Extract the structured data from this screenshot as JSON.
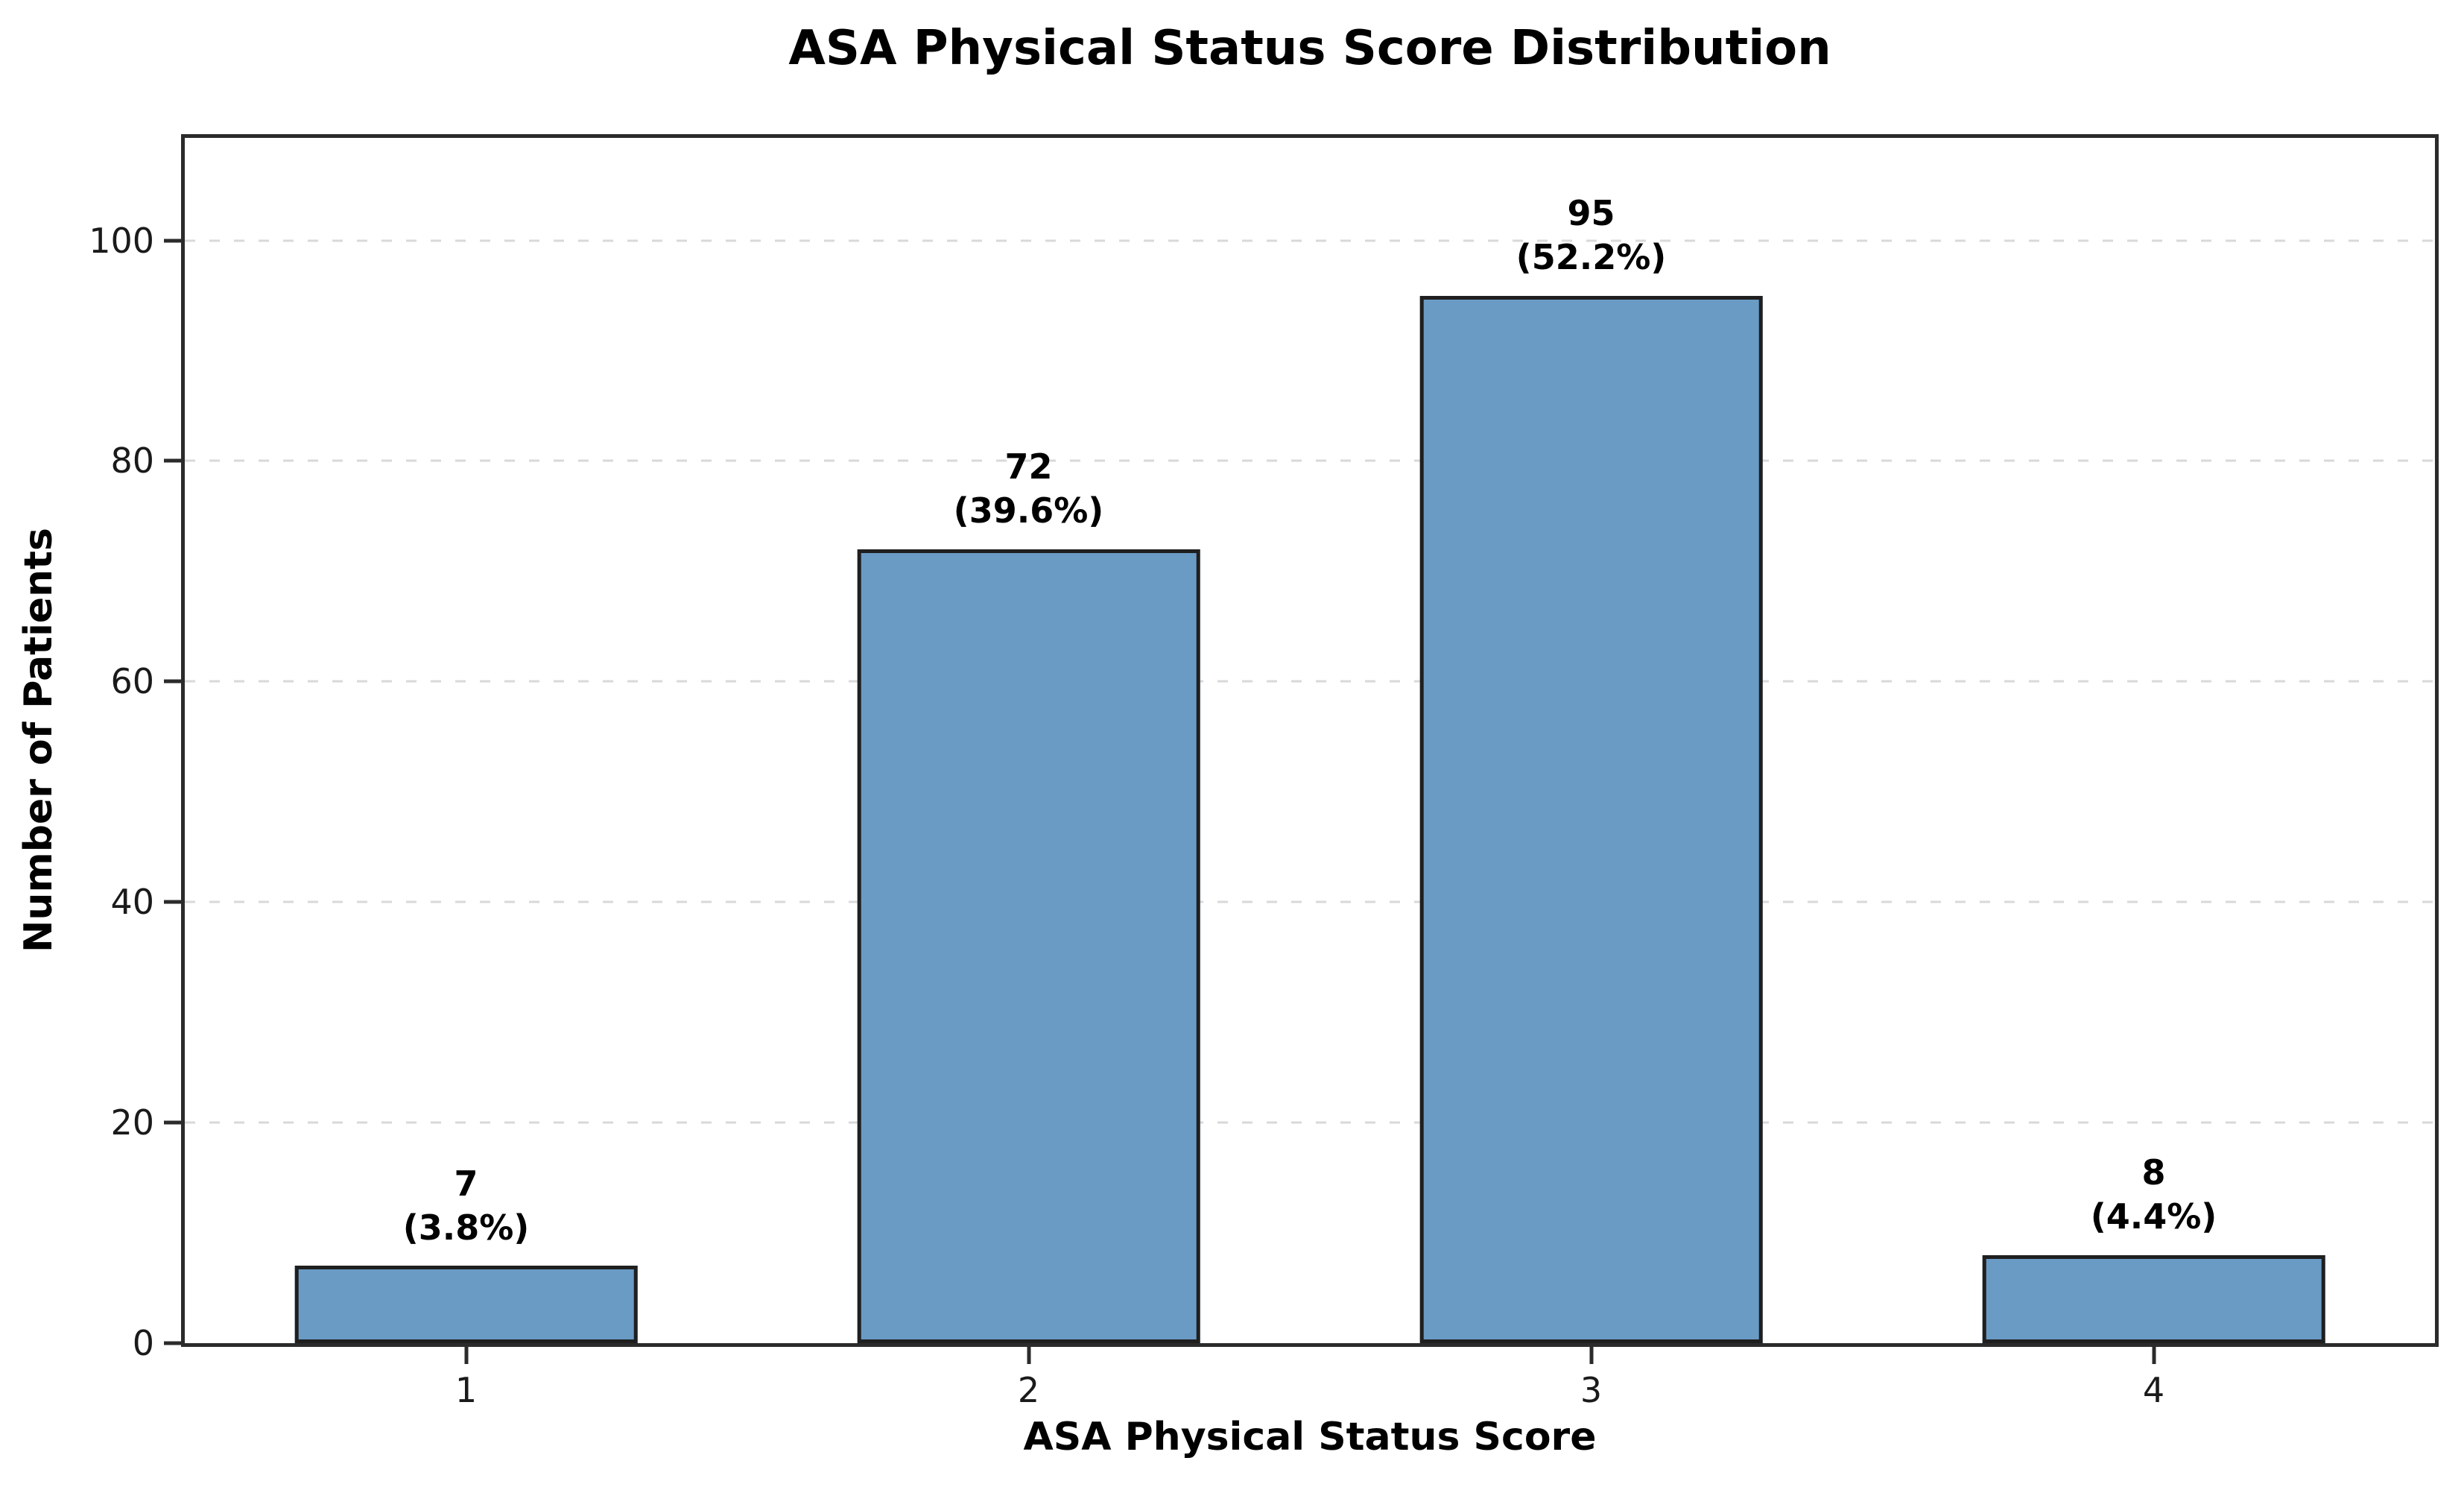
{
  "chart_data": {
    "type": "bar",
    "title": "ASA Physical Status Score Distribution",
    "xlabel": "ASA Physical Status Score",
    "ylabel": "Number of Patients",
    "categories": [
      "1",
      "2",
      "3",
      "4"
    ],
    "values": [
      7,
      72,
      95,
      8
    ],
    "percent_labels": [
      "(3.8%)",
      "(39.6%)",
      "(52.2%)",
      "(4.4%)"
    ],
    "yticks": [
      0,
      20,
      40,
      60,
      80,
      100
    ],
    "ylim": [
      0,
      109.3
    ],
    "grid": "horizontal-dashed",
    "legend": "none",
    "colors": {
      "bar_fill": "#6a9bc5",
      "bar_edge": "#1f1f1f",
      "spine": "#2b2b2b",
      "grid": "#d9d9d9",
      "text": "#000000"
    }
  }
}
